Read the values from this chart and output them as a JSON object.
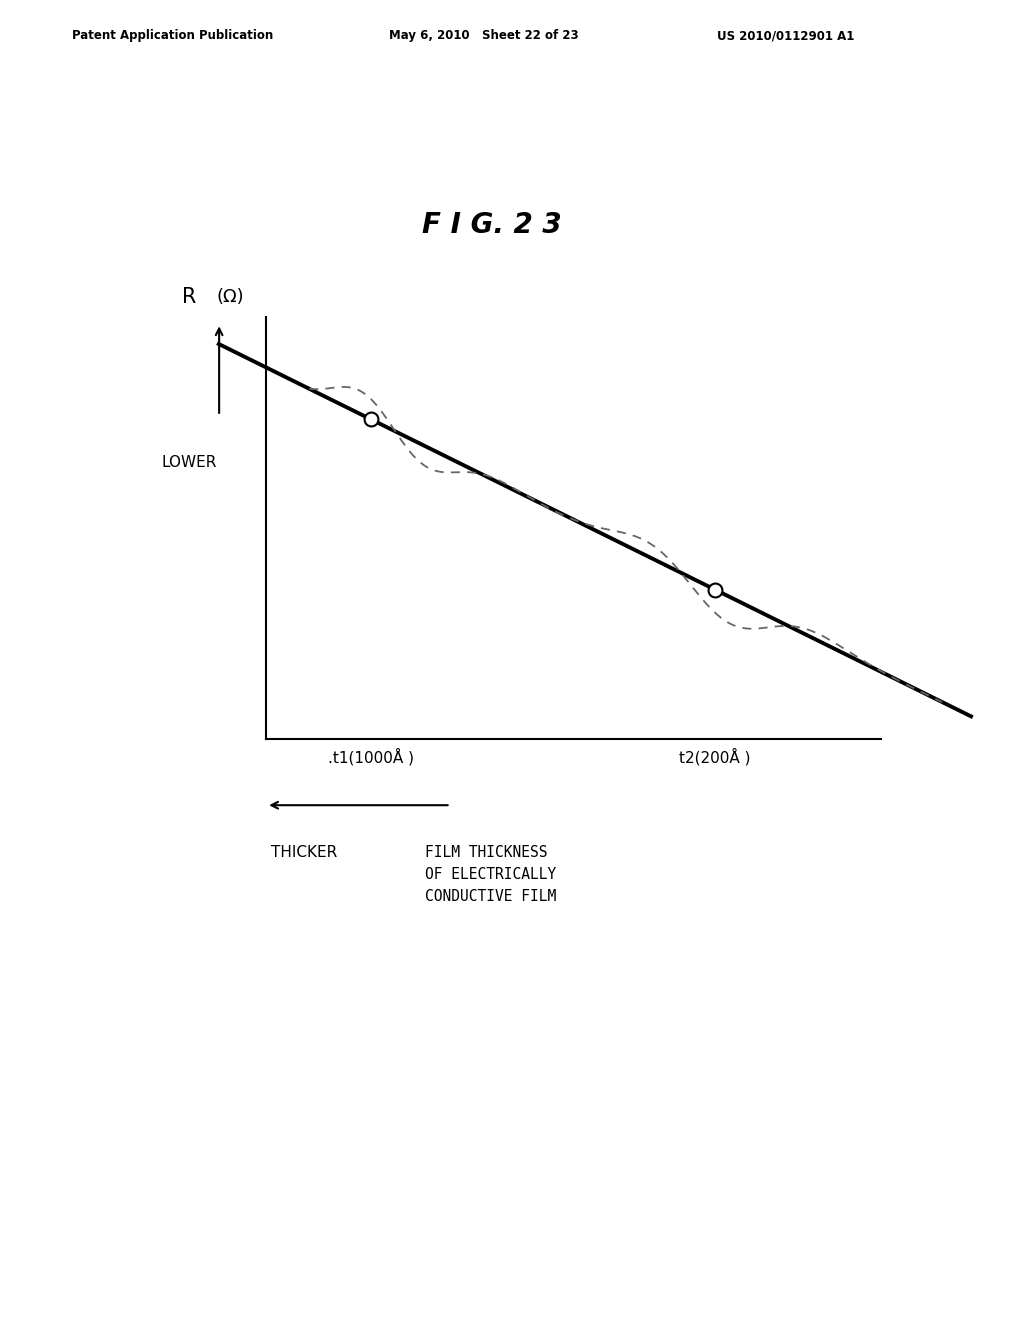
{
  "background_color": "#ffffff",
  "header_left": "Patent Application Publication",
  "header_mid": "May 6, 2010   Sheet 22 of 23",
  "header_right": "US 2010/0112901 A1",
  "figure_label": "F I G. 2 3",
  "ylabel_R": "R",
  "ylabel_omega": "(Ω)",
  "ylabel_lower": "LOWER",
  "xlabel_t1": ".t1(1000Å )",
  "xlabel_t2": "t2(200Å )",
  "thicker_label": "THICKER",
  "film_thickness_label": "FILM THICKNESS\nOF ELECTRICALLY\nCONDUCTIVE FILM",
  "straight_line_color": "#000000",
  "dashed_line_color": "#666666",
  "circle_color": "#000000",
  "axis_color": "#000000",
  "header_fontsize": 8.5,
  "figure_label_fontsize": 20,
  "axis_label_fontsize": 13,
  "tick_label_fontsize": 11,
  "annotation_fontsize": 10
}
